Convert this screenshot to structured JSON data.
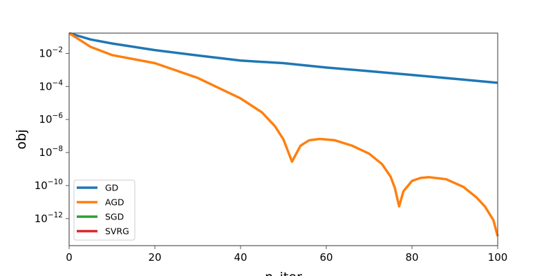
{
  "chart_data": {
    "type": "line",
    "title": "",
    "xlabel": "n_iter",
    "ylabel": "obj",
    "xscale": "linear",
    "yscale": "log",
    "xlim": [
      0,
      100
    ],
    "ylim": [
      0.17,
      2.3e-14
    ],
    "xticks": [
      0,
      20,
      40,
      60,
      80,
      100
    ],
    "yticks_exponents": [
      -2,
      -4,
      -6,
      -8,
      -10,
      -12
    ],
    "ytick_base": "10",
    "grid": false,
    "legend": {
      "placement": "lower-left",
      "entries": [
        "GD",
        "AGD",
        "SGD",
        "SVRG"
      ]
    },
    "series": [
      {
        "name": "GD",
        "color": "#1f77b4",
        "x": [
          0,
          5,
          10,
          20,
          30,
          40,
          50,
          60,
          70,
          80,
          90,
          100
        ],
        "y": [
          0.17,
          0.07,
          0.04,
          0.016,
          0.0075,
          0.0037,
          0.0026,
          0.0014,
          0.00085,
          0.0005,
          0.00029,
          0.000166
        ]
      },
      {
        "name": "AGD",
        "color": "#ff7f0e",
        "x": [
          0,
          5,
          10,
          20,
          30,
          40,
          45,
          48,
          50,
          52,
          54,
          56,
          58.5,
          62,
          66,
          70,
          73,
          75,
          76,
          77,
          78,
          80,
          82,
          84,
          88,
          92,
          95,
          97,
          99,
          100
        ],
        "y": [
          0.17,
          0.025,
          0.008,
          0.0026,
          0.00033,
          1.9e-05,
          2.7e-06,
          4e-07,
          6.3e-08,
          2.8e-09,
          2.6e-08,
          5.5e-08,
          6.6e-08,
          5.5e-08,
          2.6e-08,
          8.5e-09,
          2e-09,
          3.5e-10,
          7.2e-11,
          5.5e-12,
          4.5e-11,
          1.9e-10,
          2.9e-10,
          3.2e-10,
          2.4e-10,
          8.3e-11,
          1.95e-11,
          5.5e-12,
          8e-13,
          8.5e-14
        ]
      },
      {
        "name": "SGD",
        "color": "#2ca02c",
        "x": [],
        "y": []
      },
      {
        "name": "SVRG",
        "color": "#d62728",
        "x": [],
        "y": []
      }
    ]
  }
}
